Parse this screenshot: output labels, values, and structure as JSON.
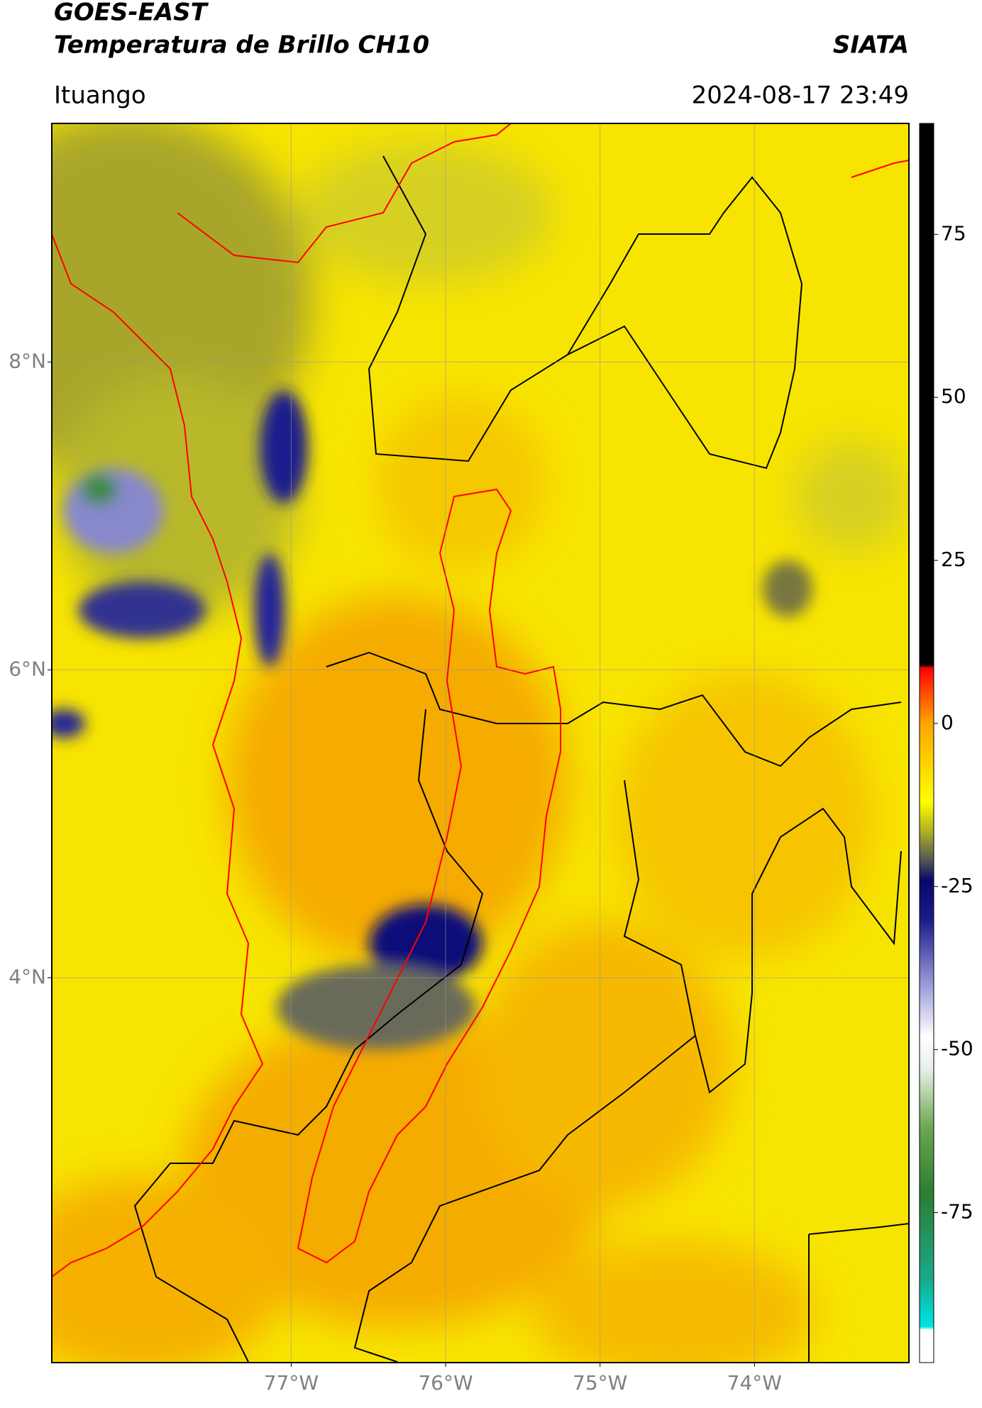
{
  "chart_data": {
    "type": "map",
    "title": "GOES-EAST",
    "subtitle": "Temperatura de Brillo CH10",
    "source": "SIATA",
    "location": "Ituango",
    "timestamp": "2024-08-17 23:49",
    "xlim": [
      -78.55,
      -73.0
    ],
    "ylim": [
      1.5,
      9.55
    ],
    "xticks": [
      {
        "value": -77,
        "label": "77°W"
      },
      {
        "value": -76,
        "label": "76°W"
      },
      {
        "value": -75,
        "label": "75°W"
      },
      {
        "value": -74,
        "label": "74°W"
      }
    ],
    "yticks": [
      {
        "value": 4,
        "label": "4°N"
      },
      {
        "value": 6,
        "label": "6°N"
      },
      {
        "value": 8,
        "label": "8°N"
      }
    ],
    "grid": true,
    "colorbar": {
      "lim": [
        -98,
        92
      ],
      "ticks": [
        -75,
        -50,
        -25,
        0,
        25,
        50,
        75
      ],
      "stops": [
        [
          -98,
          "#ffffff"
        ],
        [
          -93,
          "#ffffff"
        ],
        [
          -92.5,
          "#00e5e5"
        ],
        [
          -85,
          "#1aa88a"
        ],
        [
          -72,
          "#2e7d32"
        ],
        [
          -62,
          "#6aa84f"
        ],
        [
          -53,
          "#e8efe8"
        ],
        [
          -48,
          "#ffffff"
        ],
        [
          -40,
          "#9a9ad8"
        ],
        [
          -30,
          "#1a1a8c"
        ],
        [
          -24,
          "#08086a"
        ],
        [
          -21,
          "#555555"
        ],
        [
          -17,
          "#a6a62a"
        ],
        [
          -12,
          "#ffff00"
        ],
        [
          0,
          "#ffa500"
        ],
        [
          6,
          "#ff3300"
        ],
        [
          8.5,
          "#ff0000"
        ],
        [
          9,
          "#000000"
        ],
        [
          92,
          "#000000"
        ]
      ]
    }
  }
}
